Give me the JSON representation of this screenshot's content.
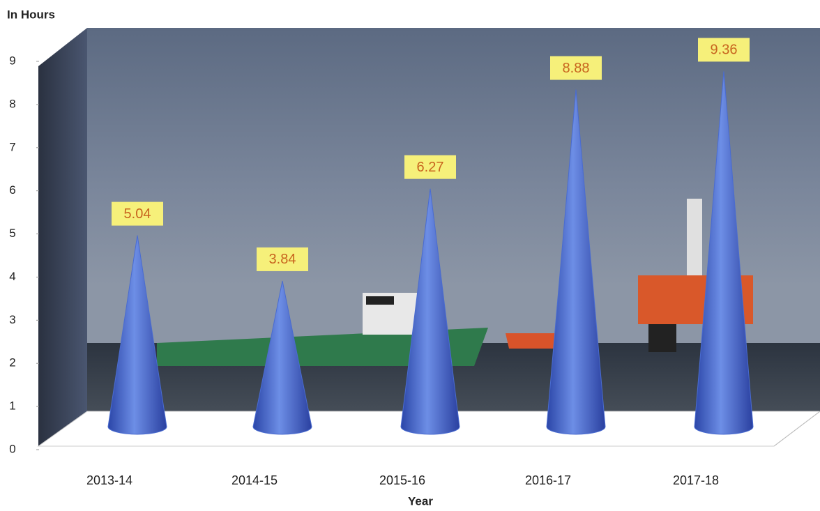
{
  "chart_data": {
    "type": "cone",
    "y_label": "In Hours",
    "x_label": "Year",
    "categories": [
      "2013-14",
      "2014-15",
      "2015-16",
      "2016-17",
      "2017-18"
    ],
    "values": [
      5.04,
      3.84,
      6.27,
      8.88,
      9.36
    ],
    "color": "#4a6cd0",
    "ylim": [
      0,
      9
    ],
    "yticks": [
      0,
      1,
      2,
      3,
      4,
      5,
      6,
      7,
      8,
      9
    ]
  }
}
